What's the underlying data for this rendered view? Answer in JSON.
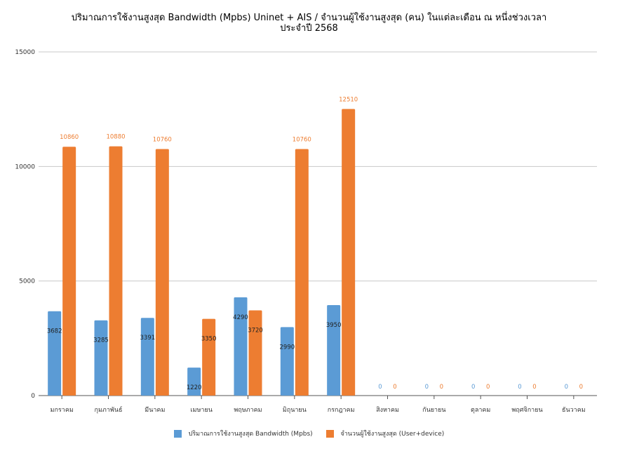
{
  "chart_data": {
    "type": "bar",
    "title": "ปริมาณการใช้งานสูงสุด Bandwidth (Mpbs) Uninet + AIS / จำนวนผู้ใช้งานสูงสุด (คน) ในแต่ละเดือน ณ หนึ่งช่วงเวลา",
    "subtitle": "ประจำปี 2568",
    "categories": [
      "มกราคม",
      "กุมภาพันธ์",
      "มีนาคม",
      "เมษายน",
      "พฤษภาคม",
      "มิถุนายน",
      "กรกฎาคม",
      "สิงหาคม",
      "กันยายน",
      "ตุลาคม",
      "พฤศจิกายน",
      "ธันวาคม"
    ],
    "series": [
      {
        "name": "ปริมาณการใช้งานสูงสุด Bandwidth (Mpbs)",
        "color": "#5b9bd5",
        "values": [
          3682,
          3285,
          3391,
          1220,
          4290,
          2990,
          3950,
          0,
          0,
          0,
          0,
          0
        ]
      },
      {
        "name": "จำนวนผู้ใช้งานสูงสุด (User+device)",
        "color": "#ed7d31",
        "values": [
          10860,
          10880,
          10760,
          3350,
          3720,
          10760,
          12510,
          0,
          0,
          0,
          0,
          0
        ]
      }
    ],
    "ylim": [
      0,
      15000
    ],
    "yticks": [
      0,
      5000,
      10000,
      15000
    ],
    "grid": true,
    "legend_position": "bottom"
  }
}
